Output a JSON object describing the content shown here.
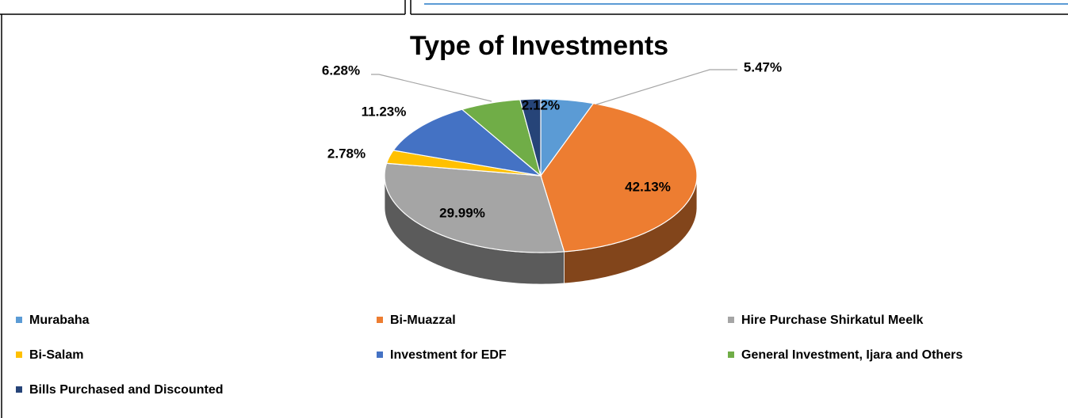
{
  "chart_data": {
    "type": "pie",
    "title": "Type of Investments",
    "categories": [
      "Murabaha",
      "Bi-Muazzal",
      "Hire Purchase Shirkatul Meelk",
      "Bi-Salam",
      "Investment for EDF",
      "General Investment, Ijara and Others",
      "Bills Purchased and Discounted"
    ],
    "values": [
      5.47,
      42.13,
      29.99,
      2.78,
      11.23,
      6.28,
      2.12
    ],
    "value_labels": [
      "5.47%",
      "42.13%",
      "29.99%",
      "2.78%",
      "11.23%",
      "6.28%",
      "2.12%"
    ],
    "colors": [
      "#5b9bd5",
      "#ed7d31",
      "#a5a5a5",
      "#ffc000",
      "#4472c4",
      "#70ad47",
      "#264478"
    ],
    "legend": "bottom"
  }
}
